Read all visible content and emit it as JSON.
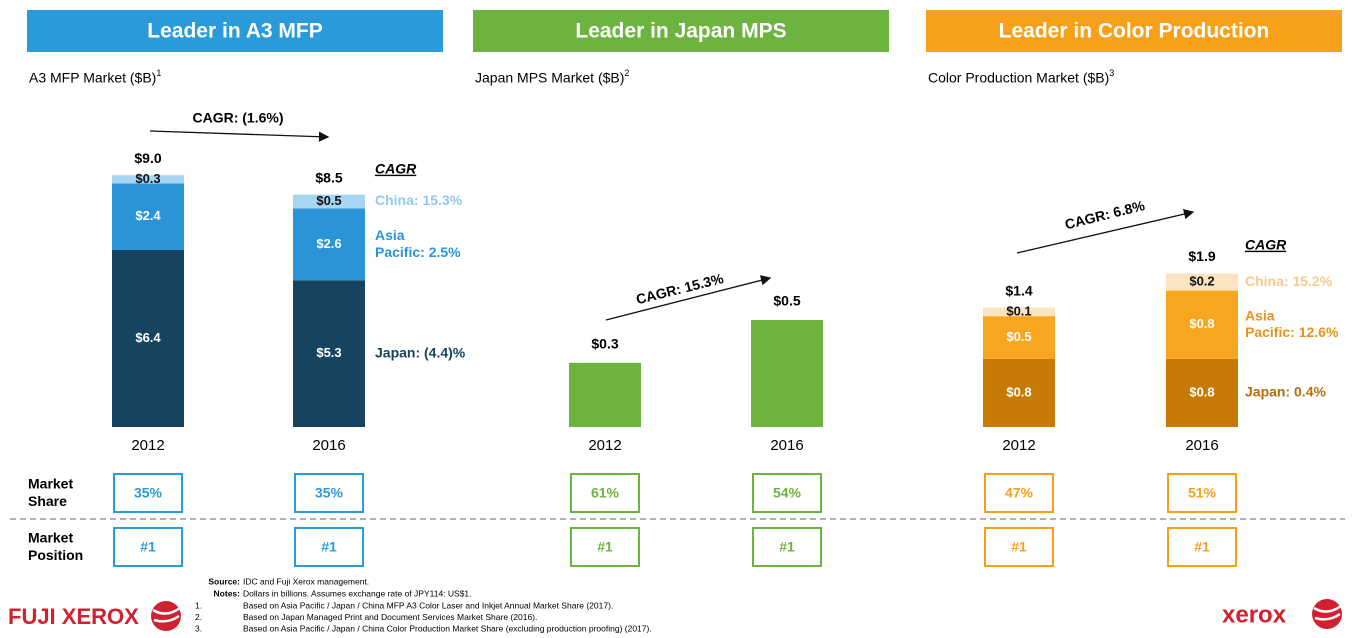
{
  "chart_data": [
    {
      "type": "stacked_bar",
      "header": "Leader in A3 MFP",
      "color": "#2b9ad9",
      "title": "A3 MFP Market ($B)",
      "title_note": "1",
      "annotation": "CAGR: (1.6%)",
      "legend_title": "CAGR",
      "categories": [
        "2012",
        "2016"
      ],
      "series": [
        {
          "name": "Japan: (4.4)%",
          "color": "#16445f",
          "legend_color": "#16445f",
          "values": [
            6.4,
            5.3
          ],
          "value_labels": [
            "$6.4",
            "$5.3"
          ]
        },
        {
          "name": "Asia Pacific: 2.5%",
          "color": "#2a94d6",
          "legend_color": "#2a94d6",
          "values": [
            2.4,
            2.6
          ],
          "value_labels": [
            "$2.4",
            "$2.6"
          ]
        },
        {
          "name": "China: 15.3%",
          "color": "#a8d5f0",
          "legend_color": "#8ecbef",
          "values": [
            0.3,
            0.5
          ],
          "value_labels": [
            "$0.3",
            "$0.5"
          ]
        }
      ],
      "totals": [
        9.0,
        8.5
      ],
      "total_labels": [
        "$9.0",
        "$8.5"
      ],
      "market_share": [
        35,
        35
      ],
      "market_share_labels": [
        "35%",
        "35%"
      ],
      "market_position": [
        "#1",
        "#1"
      ]
    },
    {
      "type": "bar",
      "header": "Leader in Japan MPS",
      "color": "#6db33f",
      "title": "Japan MPS Market ($B)",
      "title_note": "2",
      "annotation": "CAGR: 15.3%",
      "categories": [
        "2012",
        "2016"
      ],
      "values": [
        0.3,
        0.5
      ],
      "value_labels": [
        "$0.3",
        "$0.5"
      ],
      "market_share": [
        61,
        54
      ],
      "market_share_labels": [
        "61%",
        "54%"
      ],
      "market_position": [
        "#1",
        "#1"
      ]
    },
    {
      "type": "stacked_bar",
      "header": "Leader in Color Production",
      "color": "#f7a11a",
      "title": "Color Production Market ($B)",
      "title_note": "3",
      "annotation": "CAGR: 6.8%",
      "legend_title": "CAGR",
      "categories": [
        "2012",
        "2016"
      ],
      "series": [
        {
          "name": "Japan: 0.4%",
          "color": "#c77a05",
          "legend_color": "#b46f0a",
          "values": [
            0.8,
            0.8
          ],
          "value_labels": [
            "$0.8",
            "$0.8"
          ]
        },
        {
          "name": "Asia Pacific: 12.6%",
          "color": "#f8a51f",
          "legend_color": "#e8931a",
          "values": [
            0.5,
            0.8
          ],
          "value_labels": [
            "$0.5",
            "$0.8"
          ]
        },
        {
          "name": "China: 15.2%",
          "color": "#fde4c0",
          "legend_color": "#f9c98c",
          "values": [
            0.1,
            0.2
          ],
          "value_labels": [
            "$0.1",
            "$0.2"
          ]
        }
      ],
      "totals": [
        1.4,
        1.9
      ],
      "total_labels": [
        "$1.4",
        "$1.9"
      ],
      "market_share": [
        47,
        51
      ],
      "market_share_labels": [
        "47%",
        "51%"
      ],
      "market_position": [
        "#1",
        "#1"
      ]
    }
  ],
  "row_labels": [
    "Market Share",
    "Market Position"
  ],
  "footnotes": {
    "source_label": "Source:",
    "source": "IDC and Fuji Xerox management.",
    "notes_label": "Notes:",
    "notes": "Dollars in billions. Assumes exchange rate of JPY114: US$1.",
    "items": [
      {
        "num": "1.",
        "text": "Based on Asia Pacific / Japan / China MFP A3 Color Laser and Inkjet Annual Market Share (2017)."
      },
      {
        "num": "2.",
        "text": "Based on Japan Managed Print and Document Services Market Share (2016)."
      },
      {
        "num": "3.",
        "text": "Based on Asia Pacific / Japan / China Color Production Market Share (excluding production proofing) (2017)."
      }
    ]
  },
  "logos": [
    "FUJI XEROX",
    "xerox"
  ]
}
